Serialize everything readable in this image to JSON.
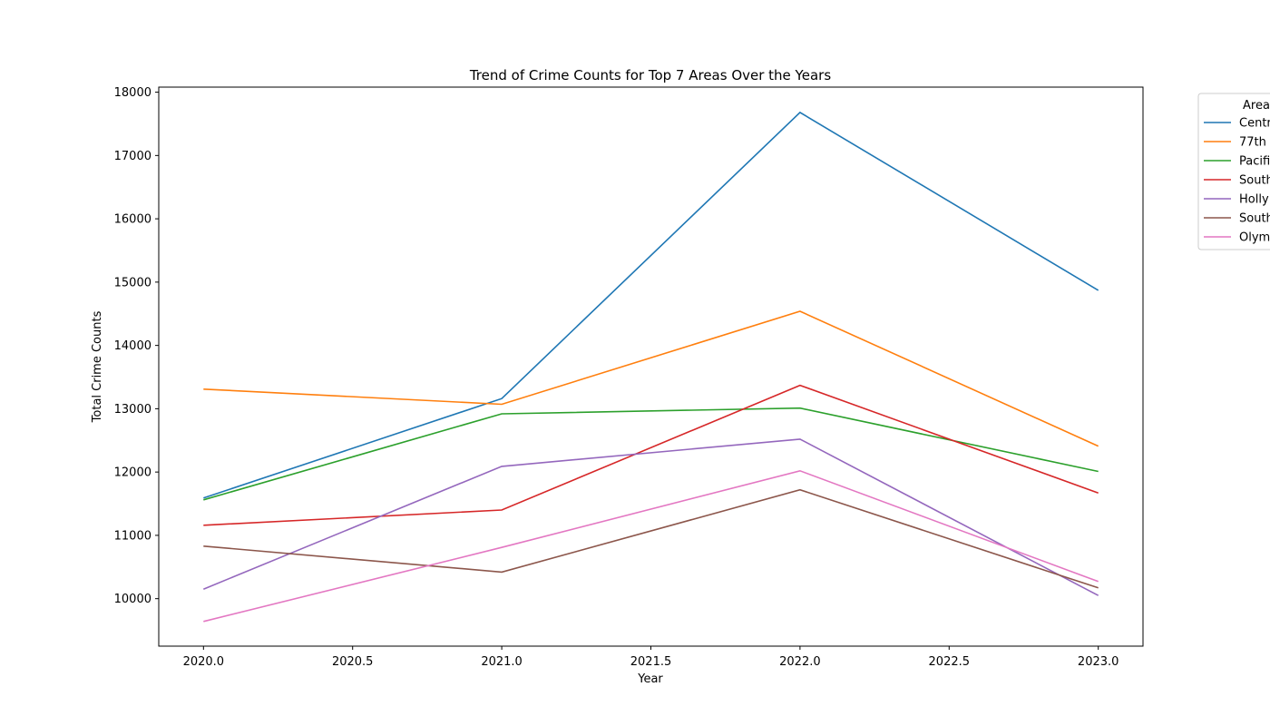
{
  "chart_data": {
    "type": "line",
    "title": "Trend of Crime Counts for Top 7 Areas Over the Years",
    "xlabel": "Year",
    "ylabel": "Total Crime Counts",
    "x": [
      2020,
      2021,
      2022,
      2023
    ],
    "xlim": [
      2019.85,
      2023.15
    ],
    "ylim": [
      9250,
      18080
    ],
    "xticks": [
      "2020.0",
      "2020.5",
      "2021.0",
      "2021.5",
      "2022.0",
      "2022.5",
      "2023.0"
    ],
    "yticks": [
      "10000",
      "11000",
      "12000",
      "13000",
      "14000",
      "15000",
      "16000",
      "17000",
      "18000"
    ],
    "grid": false,
    "legend": {
      "title": "Area",
      "placement": "outside-top-right"
    },
    "series": [
      {
        "name": "Centr",
        "color": "#1f77b4",
        "values": [
          11590,
          13160,
          17680,
          14870
        ]
      },
      {
        "name": "77th",
        "color": "#ff7f0e",
        "values": [
          13310,
          13070,
          14540,
          12410
        ]
      },
      {
        "name": "Pacifi",
        "color": "#2ca02c",
        "values": [
          11560,
          12920,
          13010,
          12010
        ]
      },
      {
        "name": "South",
        "color": "#d62728",
        "values": [
          11160,
          11400,
          13370,
          11670
        ]
      },
      {
        "name": "Holly",
        "color": "#9467bd",
        "values": [
          10150,
          12090,
          12520,
          10050
        ]
      },
      {
        "name": "South",
        "color": "#8c564b",
        "values": [
          10830,
          10420,
          11720,
          10170
        ]
      },
      {
        "name": "Olym",
        "color": "#e377c2",
        "values": [
          9640,
          10810,
          12020,
          10270
        ]
      }
    ]
  }
}
